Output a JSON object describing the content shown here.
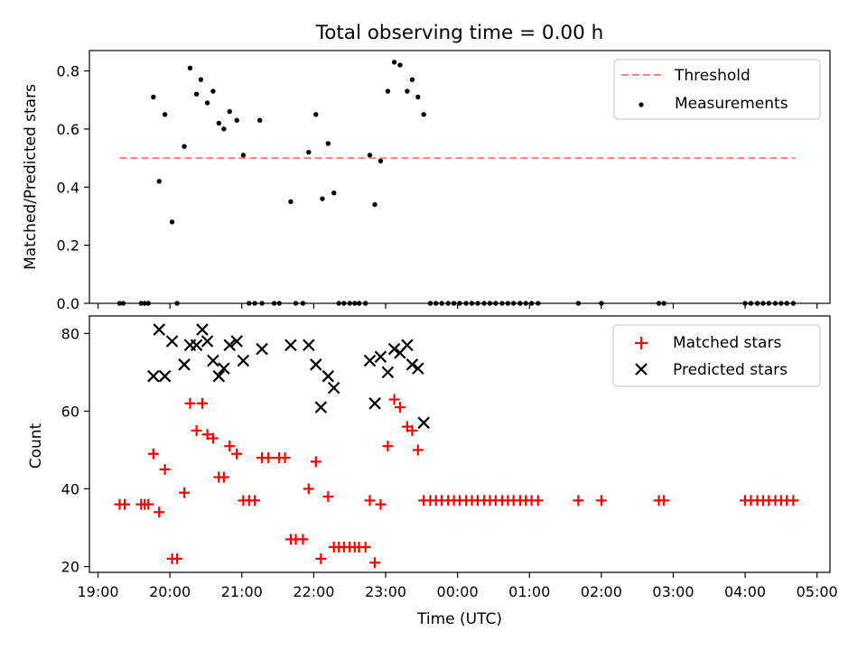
{
  "chart_data": {
    "type": "scatter",
    "title": "Total observing time = 0.00 h",
    "xlabel": "Time (UTC)",
    "xtick_labels": [
      "19:00",
      "20:00",
      "21:00",
      "22:00",
      "23:00",
      "00:00",
      "01:00",
      "02:00",
      "03:00",
      "04:00",
      "05:00"
    ],
    "xtick_hours": [
      19,
      20,
      21,
      22,
      23,
      24,
      25,
      26,
      27,
      28,
      29
    ],
    "xlim_hours": [
      18.88,
      29.18
    ],
    "colors": {
      "threshold": "#ff7f7f",
      "measurements": "#000000",
      "matched": "#ff0000",
      "predicted": "#000000"
    },
    "panels": [
      {
        "ylabel": "Matched/Predicted stars",
        "ylim": [
          0,
          0.87
        ],
        "yticks": [
          0.0,
          0.2,
          0.4,
          0.6,
          0.8
        ],
        "ytick_labels": [
          "0.0",
          "0.2",
          "0.4",
          "0.6",
          "0.8"
        ],
        "legend": [
          "Threshold",
          "Measurements"
        ],
        "legend_position": "top-right",
        "threshold": {
          "name": "Threshold",
          "value": 0.5,
          "x_range": [
            19.3,
            28.7
          ]
        },
        "measurements": [
          [
            19.3,
            0
          ],
          [
            19.35,
            0
          ],
          [
            19.6,
            0
          ],
          [
            19.65,
            0
          ],
          [
            19.7,
            0
          ],
          [
            19.77,
            0.71
          ],
          [
            19.85,
            0.42
          ],
          [
            19.93,
            0.65
          ],
          [
            20.03,
            0.28
          ],
          [
            20.1,
            0
          ],
          [
            20.2,
            0.54
          ],
          [
            20.28,
            0.81
          ],
          [
            20.37,
            0.72
          ],
          [
            20.43,
            0.77
          ],
          [
            20.52,
            0.69
          ],
          [
            20.6,
            0.73
          ],
          [
            20.68,
            0.62
          ],
          [
            20.75,
            0.6
          ],
          [
            20.83,
            0.66
          ],
          [
            20.93,
            0.63
          ],
          [
            21.02,
            0.51
          ],
          [
            21.1,
            0
          ],
          [
            21.18,
            0
          ],
          [
            21.25,
            0.63
          ],
          [
            21.28,
            0
          ],
          [
            21.45,
            0
          ],
          [
            21.52,
            0
          ],
          [
            21.68,
            0.35
          ],
          [
            21.75,
            0
          ],
          [
            21.85,
            0
          ],
          [
            21.93,
            0.52
          ],
          [
            22.03,
            0.65
          ],
          [
            22.12,
            0.36
          ],
          [
            22.2,
            0.55
          ],
          [
            22.28,
            0.38
          ],
          [
            22.35,
            0
          ],
          [
            22.42,
            0
          ],
          [
            22.5,
            0
          ],
          [
            22.57,
            0
          ],
          [
            22.63,
            0
          ],
          [
            22.72,
            0
          ],
          [
            22.78,
            0.51
          ],
          [
            22.85,
            0.34
          ],
          [
            22.93,
            0.49
          ],
          [
            23.03,
            0.73
          ],
          [
            23.12,
            0.83
          ],
          [
            23.2,
            0.82
          ],
          [
            23.3,
            0.73
          ],
          [
            23.37,
            0.77
          ],
          [
            23.45,
            0.71
          ],
          [
            23.53,
            0.65
          ],
          [
            23.62,
            0
          ],
          [
            23.7,
            0
          ],
          [
            23.78,
            0
          ],
          [
            23.87,
            0
          ],
          [
            23.95,
            0
          ],
          [
            24.03,
            0
          ],
          [
            24.12,
            0
          ],
          [
            24.2,
            0
          ],
          [
            24.28,
            0
          ],
          [
            24.37,
            0
          ],
          [
            24.45,
            0
          ],
          [
            24.53,
            0
          ],
          [
            24.62,
            0
          ],
          [
            24.7,
            0
          ],
          [
            24.78,
            0
          ],
          [
            24.87,
            0
          ],
          [
            24.95,
            0
          ],
          [
            25.03,
            0
          ],
          [
            25.12,
            0
          ],
          [
            25.68,
            0
          ],
          [
            26.0,
            0
          ],
          [
            26.8,
            0
          ],
          [
            26.87,
            0
          ],
          [
            28.0,
            0
          ],
          [
            28.08,
            0
          ],
          [
            28.17,
            0
          ],
          [
            28.25,
            0
          ],
          [
            28.33,
            0
          ],
          [
            28.42,
            0
          ],
          [
            28.5,
            0
          ],
          [
            28.58,
            0
          ],
          [
            28.67,
            0
          ]
        ]
      },
      {
        "ylabel": "Count",
        "ylim": [
          18.5,
          84.5
        ],
        "yticks": [
          20,
          40,
          60,
          80
        ],
        "ytick_labels": [
          "20",
          "40",
          "60",
          "80"
        ],
        "legend": [
          "Matched stars",
          "Predicted stars"
        ],
        "legend_position": "top-right",
        "matched": [
          [
            19.3,
            36
          ],
          [
            19.37,
            36
          ],
          [
            19.6,
            36
          ],
          [
            19.65,
            36
          ],
          [
            19.7,
            36
          ],
          [
            19.77,
            49
          ],
          [
            19.85,
            34
          ],
          [
            19.93,
            45
          ],
          [
            20.03,
            22
          ],
          [
            20.1,
            22
          ],
          [
            20.2,
            39
          ],
          [
            20.28,
            62
          ],
          [
            20.37,
            55
          ],
          [
            20.45,
            62
          ],
          [
            20.52,
            54
          ],
          [
            20.6,
            53
          ],
          [
            20.68,
            43
          ],
          [
            20.75,
            43
          ],
          [
            20.83,
            51
          ],
          [
            20.93,
            49
          ],
          [
            21.02,
            37
          ],
          [
            21.1,
            37
          ],
          [
            21.18,
            37
          ],
          [
            21.28,
            48
          ],
          [
            21.37,
            48
          ],
          [
            21.52,
            48
          ],
          [
            21.6,
            48
          ],
          [
            21.68,
            27
          ],
          [
            21.75,
            27
          ],
          [
            21.85,
            27
          ],
          [
            21.93,
            40
          ],
          [
            22.03,
            47
          ],
          [
            22.1,
            22
          ],
          [
            22.2,
            38
          ],
          [
            22.28,
            25
          ],
          [
            22.35,
            25
          ],
          [
            22.42,
            25
          ],
          [
            22.5,
            25
          ],
          [
            22.57,
            25
          ],
          [
            22.63,
            25
          ],
          [
            22.72,
            25
          ],
          [
            22.78,
            37
          ],
          [
            22.85,
            21
          ],
          [
            22.93,
            36
          ],
          [
            23.03,
            51
          ],
          [
            23.12,
            63
          ],
          [
            23.2,
            61
          ],
          [
            23.3,
            56
          ],
          [
            23.37,
            55
          ],
          [
            23.45,
            50
          ],
          [
            23.53,
            37
          ],
          [
            23.62,
            37
          ],
          [
            23.7,
            37
          ],
          [
            23.78,
            37
          ],
          [
            23.87,
            37
          ],
          [
            23.95,
            37
          ],
          [
            24.03,
            37
          ],
          [
            24.12,
            37
          ],
          [
            24.2,
            37
          ],
          [
            24.28,
            37
          ],
          [
            24.37,
            37
          ],
          [
            24.45,
            37
          ],
          [
            24.53,
            37
          ],
          [
            24.62,
            37
          ],
          [
            24.7,
            37
          ],
          [
            24.78,
            37
          ],
          [
            24.87,
            37
          ],
          [
            24.95,
            37
          ],
          [
            25.03,
            37
          ],
          [
            25.12,
            37
          ],
          [
            25.68,
            37
          ],
          [
            26.0,
            37
          ],
          [
            26.8,
            37
          ],
          [
            26.87,
            37
          ],
          [
            28.0,
            37
          ],
          [
            28.08,
            37
          ],
          [
            28.17,
            37
          ],
          [
            28.25,
            37
          ],
          [
            28.33,
            37
          ],
          [
            28.42,
            37
          ],
          [
            28.5,
            37
          ],
          [
            28.58,
            37
          ],
          [
            28.67,
            37
          ]
        ],
        "predicted": [
          [
            19.77,
            69
          ],
          [
            19.85,
            81
          ],
          [
            19.93,
            69
          ],
          [
            20.03,
            78
          ],
          [
            20.2,
            72
          ],
          [
            20.28,
            77
          ],
          [
            20.37,
            77
          ],
          [
            20.45,
            81
          ],
          [
            20.52,
            78
          ],
          [
            20.6,
            73
          ],
          [
            20.68,
            69
          ],
          [
            20.75,
            71
          ],
          [
            20.83,
            77
          ],
          [
            20.93,
            78
          ],
          [
            21.02,
            73
          ],
          [
            21.28,
            76
          ],
          [
            21.68,
            77
          ],
          [
            21.93,
            77
          ],
          [
            22.03,
            72
          ],
          [
            22.1,
            61
          ],
          [
            22.2,
            69
          ],
          [
            22.28,
            66
          ],
          [
            22.78,
            73
          ],
          [
            22.85,
            62
          ],
          [
            22.93,
            74
          ],
          [
            23.03,
            70
          ],
          [
            23.12,
            76
          ],
          [
            23.2,
            75
          ],
          [
            23.3,
            77
          ],
          [
            23.37,
            72
          ],
          [
            23.45,
            71
          ],
          [
            23.53,
            57
          ]
        ]
      }
    ]
  }
}
